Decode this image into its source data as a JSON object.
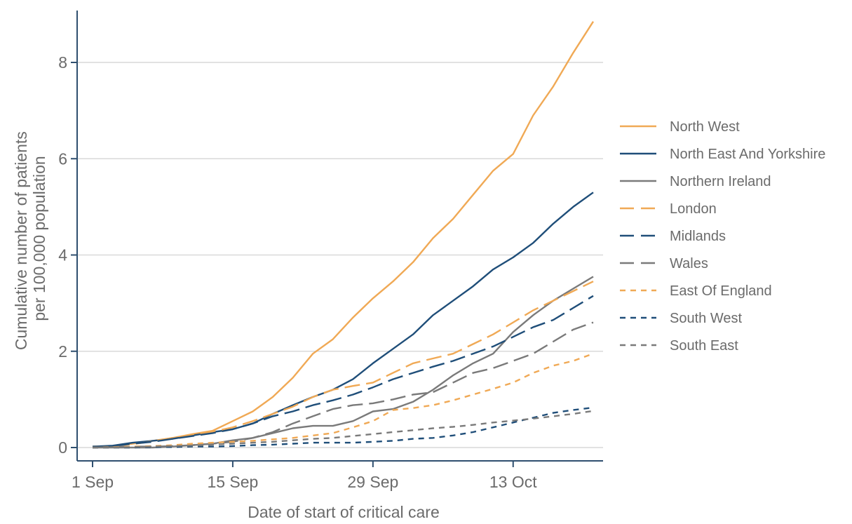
{
  "chart_data": {
    "type": "line",
    "title": "",
    "xlabel": "Date of start of critical care",
    "ylabel_lines": [
      "Cumulative number of patients",
      "per 100,000 population"
    ],
    "x_unit": "date",
    "x_range": [
      "2020-09-01",
      "2020-10-21"
    ],
    "xticks": [
      {
        "label": "1 Sep",
        "date": "2020-09-01"
      },
      {
        "label": "15 Sep",
        "date": "2020-09-15"
      },
      {
        "label": "29 Sep",
        "date": "2020-09-29"
      },
      {
        "label": "13 Oct",
        "date": "2020-10-13"
      }
    ],
    "yticks": [
      0,
      2,
      4,
      6,
      8
    ],
    "ylim": [
      -0.25,
      9.05
    ],
    "grid": "horizontal",
    "legend_position": "right",
    "dates": [
      "2020-09-01",
      "2020-09-03",
      "2020-09-05",
      "2020-09-07",
      "2020-09-09",
      "2020-09-11",
      "2020-09-13",
      "2020-09-15",
      "2020-09-17",
      "2020-09-19",
      "2020-09-21",
      "2020-09-23",
      "2020-09-25",
      "2020-09-27",
      "2020-09-29",
      "2020-10-01",
      "2020-10-03",
      "2020-10-05",
      "2020-10-07",
      "2020-10-09",
      "2020-10-11",
      "2020-10-13",
      "2020-10-15",
      "2020-10-17",
      "2020-10-19",
      "2020-10-21"
    ],
    "series": [
      {
        "name": "North West",
        "color": "#F0A955",
        "dash": "solid",
        "values": [
          0.02,
          0.03,
          0.08,
          0.14,
          0.2,
          0.28,
          0.35,
          0.55,
          0.75,
          1.05,
          1.45,
          1.95,
          2.25,
          2.7,
          3.1,
          3.45,
          3.85,
          4.35,
          4.75,
          5.25,
          5.75,
          6.1,
          6.9,
          7.5,
          8.2,
          8.85
        ]
      },
      {
        "name": "North East And Yorkshire",
        "color": "#1F4E79",
        "dash": "solid",
        "values": [
          0.02,
          0.04,
          0.1,
          0.14,
          0.18,
          0.25,
          0.32,
          0.38,
          0.5,
          0.7,
          0.88,
          1.05,
          1.2,
          1.42,
          1.75,
          2.05,
          2.35,
          2.75,
          3.05,
          3.35,
          3.7,
          3.95,
          4.25,
          4.65,
          5.0,
          5.3
        ]
      },
      {
        "name": "Northern Ireland",
        "color": "#7A7A7A",
        "dash": "solid",
        "values": [
          0.0,
          0.0,
          0.0,
          0.0,
          0.02,
          0.05,
          0.08,
          0.15,
          0.2,
          0.3,
          0.4,
          0.45,
          0.45,
          0.55,
          0.75,
          0.8,
          0.95,
          1.2,
          1.5,
          1.75,
          1.95,
          2.4,
          2.75,
          3.05,
          3.3,
          3.55
        ]
      },
      {
        "name": "London",
        "color": "#F0A955",
        "dash": "long",
        "values": [
          0.01,
          0.03,
          0.07,
          0.13,
          0.2,
          0.27,
          0.33,
          0.42,
          0.55,
          0.7,
          0.85,
          1.05,
          1.2,
          1.28,
          1.35,
          1.55,
          1.75,
          1.85,
          1.95,
          2.15,
          2.35,
          2.6,
          2.85,
          3.05,
          3.25,
          3.45
        ]
      },
      {
        "name": "Midlands",
        "color": "#1F4E79",
        "dash": "long",
        "values": [
          0.01,
          0.03,
          0.08,
          0.12,
          0.18,
          0.24,
          0.3,
          0.38,
          0.5,
          0.65,
          0.75,
          0.88,
          0.98,
          1.1,
          1.25,
          1.42,
          1.55,
          1.68,
          1.8,
          1.95,
          2.1,
          2.3,
          2.5,
          2.65,
          2.9,
          3.15
        ]
      },
      {
        "name": "Wales",
        "color": "#7A7A7A",
        "dash": "long",
        "values": [
          0.0,
          0.01,
          0.02,
          0.02,
          0.03,
          0.05,
          0.08,
          0.12,
          0.2,
          0.32,
          0.5,
          0.65,
          0.8,
          0.88,
          0.92,
          1.0,
          1.1,
          1.15,
          1.35,
          1.55,
          1.65,
          1.8,
          1.95,
          2.2,
          2.45,
          2.6
        ]
      },
      {
        "name": "East Of England",
        "color": "#F0A955",
        "dash": "short",
        "values": [
          0.0,
          0.01,
          0.02,
          0.03,
          0.05,
          0.08,
          0.1,
          0.12,
          0.14,
          0.17,
          0.2,
          0.25,
          0.3,
          0.42,
          0.55,
          0.78,
          0.82,
          0.88,
          0.98,
          1.1,
          1.22,
          1.35,
          1.55,
          1.7,
          1.8,
          1.95
        ]
      },
      {
        "name": "South West",
        "color": "#1F4E79",
        "dash": "short",
        "values": [
          0.0,
          0.0,
          0.0,
          0.01,
          0.01,
          0.02,
          0.02,
          0.03,
          0.05,
          0.06,
          0.08,
          0.1,
          0.1,
          0.1,
          0.12,
          0.14,
          0.18,
          0.2,
          0.25,
          0.32,
          0.42,
          0.52,
          0.62,
          0.72,
          0.78,
          0.83
        ]
      },
      {
        "name": "South East",
        "color": "#7A7A7A",
        "dash": "short",
        "values": [
          0.0,
          0.0,
          0.01,
          0.02,
          0.03,
          0.04,
          0.06,
          0.08,
          0.1,
          0.12,
          0.15,
          0.18,
          0.2,
          0.24,
          0.28,
          0.32,
          0.36,
          0.4,
          0.43,
          0.47,
          0.52,
          0.56,
          0.6,
          0.65,
          0.7,
          0.76
        ]
      }
    ]
  }
}
